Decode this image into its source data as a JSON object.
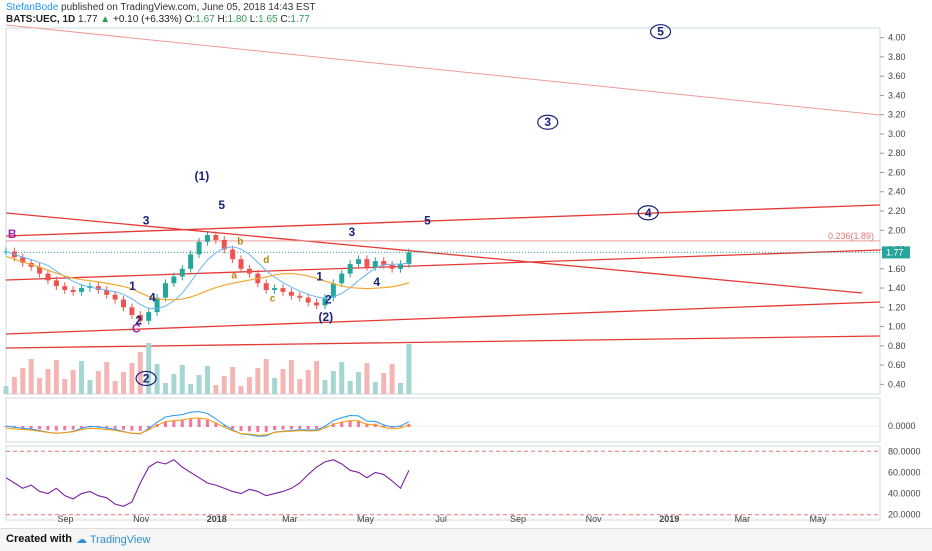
{
  "header": {
    "author": "StefanBode",
    "published": "published on TradingView.com, June 05, 2018 14:43 EST",
    "symbol": "BATS:UEC, 1D",
    "last": "1.77",
    "change": "+0.10 (+6.33%)",
    "o_label": "O:",
    "o": "1.67",
    "h_label": "H:",
    "h": "1.80",
    "l_label": "L:",
    "l": "1.65",
    "c_label": "C:",
    "c": "1.77"
  },
  "footer": {
    "created": "Created with",
    "brand": "TradingView"
  },
  "colors": {
    "up": "#26a69a",
    "down": "#ef5350",
    "trend": "#e53935",
    "wave": "#1a237e",
    "ma_orange": "#f0a830",
    "rsi": "#7b1fa2"
  },
  "chart_data": {
    "type": "line",
    "price_axis": {
      "ylim": [
        0.3,
        4.1
      ],
      "ticks": [
        "4.00",
        "3.80",
        "3.60",
        "3.40",
        "3.20",
        "3.00",
        "2.80",
        "2.60",
        "2.40",
        "2.20",
        "2.00",
        "1.80",
        "1.60",
        "1.40",
        "1.20",
        "1.00",
        "0.80",
        "0.60",
        "0.40"
      ]
    },
    "x_ticks": [
      "Sep",
      "Nov",
      "2018",
      "Mar",
      "May",
      "Jul",
      "Sep",
      "Nov",
      "2019",
      "Mar",
      "May"
    ],
    "close_series": [
      1.78,
      1.72,
      1.66,
      1.62,
      1.55,
      1.48,
      1.42,
      1.38,
      1.36,
      1.4,
      1.42,
      1.38,
      1.33,
      1.28,
      1.2,
      1.12,
      1.06,
      1.15,
      1.3,
      1.45,
      1.52,
      1.6,
      1.75,
      1.88,
      1.95,
      1.9,
      1.8,
      1.7,
      1.6,
      1.55,
      1.45,
      1.38,
      1.4,
      1.36,
      1.32,
      1.3,
      1.25,
      1.22,
      1.3,
      1.45,
      1.55,
      1.65,
      1.7,
      1.62,
      1.68,
      1.64,
      1.6,
      1.65,
      1.77
    ],
    "last_price_label": "1.77",
    "fib_label": "0.236(1.89)",
    "fib_level": 1.89,
    "wave_labels": [
      {
        "text": "B",
        "x": "2017-07-20",
        "y": 1.92
      },
      {
        "text": "1",
        "x": "2017-10-25",
        "y": 1.38
      },
      {
        "text": "2",
        "x": "2017-10-30",
        "y": 1.02
      },
      {
        "text": "3",
        "x": "2017-11-05",
        "y": 2.06
      },
      {
        "text": "4",
        "x": "2017-11-10",
        "y": 1.26
      },
      {
        "text": "C",
        "x": "2017-10-28",
        "y": 0.94
      },
      {
        "text": "(1)",
        "x": "2017-12-20",
        "y": 2.52
      },
      {
        "text": "5",
        "x": "2018-01-05",
        "y": 2.22
      },
      {
        "text": "b",
        "x": "2018-01-20",
        "y": 1.85
      },
      {
        "text": "a",
        "x": "2018-01-15",
        "y": 1.5
      },
      {
        "text": "d",
        "x": "2018-02-10",
        "y": 1.66
      },
      {
        "text": "c",
        "x": "2018-02-15",
        "y": 1.26
      },
      {
        "text": "1",
        "x": "2018-03-25",
        "y": 1.48
      },
      {
        "text": "2",
        "x": "2018-04-01",
        "y": 1.24
      },
      {
        "text": "(2)",
        "x": "2018-03-30",
        "y": 1.06
      },
      {
        "text": "3",
        "x": "2018-04-20",
        "y": 1.94
      },
      {
        "text": "4",
        "x": "2018-05-10",
        "y": 1.42
      },
      {
        "text": "5",
        "x": "2018-06-20",
        "y": 2.06
      }
    ],
    "circled_labels": [
      {
        "text": "2",
        "x": "2017-11-05",
        "y": 0.42
      },
      {
        "text": "3",
        "x": "2018-09-25",
        "y": 3.08
      },
      {
        "text": "4",
        "x": "2018-12-15",
        "y": 2.14
      },
      {
        "text": "5",
        "x": "2018-12-25",
        "y": 4.02
      }
    ],
    "macd_axis": {
      "ticks": [
        "0.0000"
      ]
    },
    "rsi_axis": {
      "ticks": [
        "80.0000",
        "60.0000",
        "40.0000",
        "20.0000"
      ],
      "ylim": [
        15,
        85
      ]
    },
    "rsi_series": [
      55,
      50,
      45,
      48,
      42,
      40,
      45,
      38,
      35,
      40,
      42,
      38,
      36,
      30,
      28,
      32,
      50,
      65,
      70,
      68,
      72,
      65,
      60,
      55,
      50,
      48,
      45,
      42,
      40,
      44,
      42,
      38,
      40,
      42,
      45,
      50,
      58,
      65,
      70,
      72,
      68,
      62,
      60,
      55,
      60,
      58,
      52,
      45,
      62
    ]
  }
}
